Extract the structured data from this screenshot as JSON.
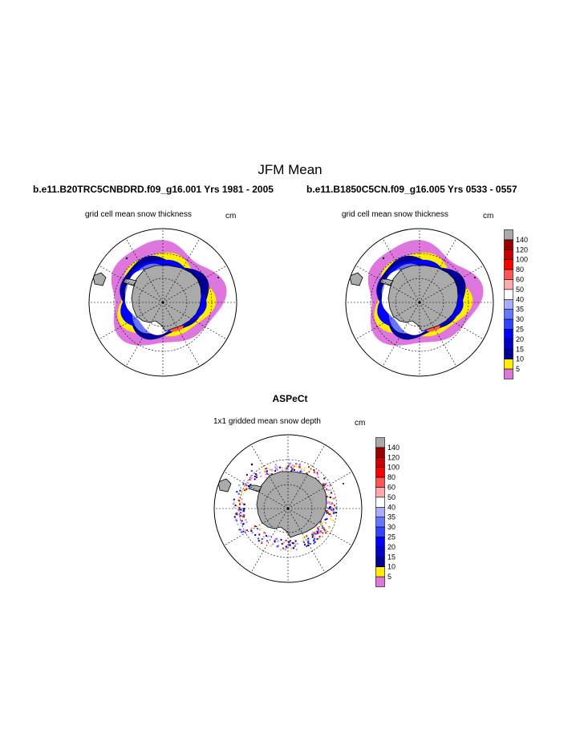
{
  "header": {
    "title": "JFM Mean",
    "left_run": "b.e11.B20TRC5CNBDRD.f09_g16.001  Yrs 1981 - 2005",
    "right_run": "b.e11.B1850C5CN.f09_g16.005  Yrs 0533 - 0557",
    "obs_title": "ASPeCt"
  },
  "chart_data": [
    {
      "type": "heatmap",
      "projection": "south polar stereographic",
      "title": "grid cell mean snow thickness",
      "units": "cm",
      "colorbar": {
        "levels": [
          "5",
          "10",
          "15",
          "20",
          "25",
          "30",
          "35",
          "40",
          "50",
          "60",
          "80",
          "100",
          "120",
          "140"
        ],
        "colors": [
          "#dd77dd",
          "#ffee00",
          "#000099",
          "#0000cc",
          "#0000ff",
          "#3344ff",
          "#6677ff",
          "#aaaaff",
          "#ffffff",
          "#ffaaaa",
          "#ff5555",
          "#ff0000",
          "#cc0000",
          "#990000",
          "#aaaaaa"
        ]
      }
    },
    {
      "type": "heatmap",
      "projection": "south polar stereographic",
      "title": "grid cell mean snow thickness",
      "units": "cm",
      "colorbar": {
        "levels": [
          "5",
          "10",
          "15",
          "20",
          "25",
          "30",
          "35",
          "40",
          "50",
          "60",
          "80",
          "100",
          "120",
          "140"
        ],
        "colors": [
          "#dd77dd",
          "#ffee00",
          "#000099",
          "#0000cc",
          "#0000ff",
          "#3344ff",
          "#6677ff",
          "#aaaaff",
          "#ffffff",
          "#ffaaaa",
          "#ff5555",
          "#ff0000",
          "#cc0000",
          "#990000",
          "#aaaaaa"
        ]
      }
    },
    {
      "type": "heatmap",
      "projection": "south polar stereographic",
      "title": "1x1 gridded mean snow depth",
      "units": "cm",
      "colorbar": {
        "levels": [
          "5",
          "10",
          "15",
          "20",
          "25",
          "30",
          "35",
          "40",
          "50",
          "60",
          "80",
          "100",
          "120",
          "140"
        ],
        "colors": [
          "#dd77dd",
          "#ffee00",
          "#000099",
          "#0000cc",
          "#0000ff",
          "#3344ff",
          "#6677ff",
          "#aaaaff",
          "#ffffff",
          "#ffaaaa",
          "#ff5555",
          "#ff0000",
          "#cc0000",
          "#990000",
          "#aaaaaa"
        ]
      }
    }
  ]
}
